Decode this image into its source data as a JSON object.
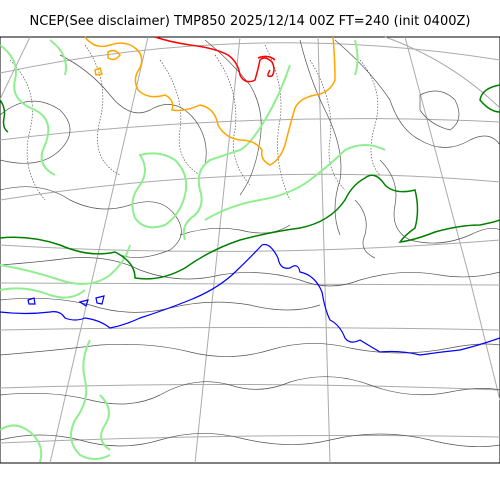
{
  "map": {
    "title": "NCEP(See disclaimer) TMP850 2025/12/14 00Z FT=240 (init 0400Z)",
    "colors": {
      "coastline": "#555555",
      "graticule": "#aaaaaa",
      "light_green": "#90ee90",
      "dark_green": "#008000",
      "blue": "#0000ff",
      "orange": "#ffa500",
      "red": "#ff0000"
    }
  }
}
